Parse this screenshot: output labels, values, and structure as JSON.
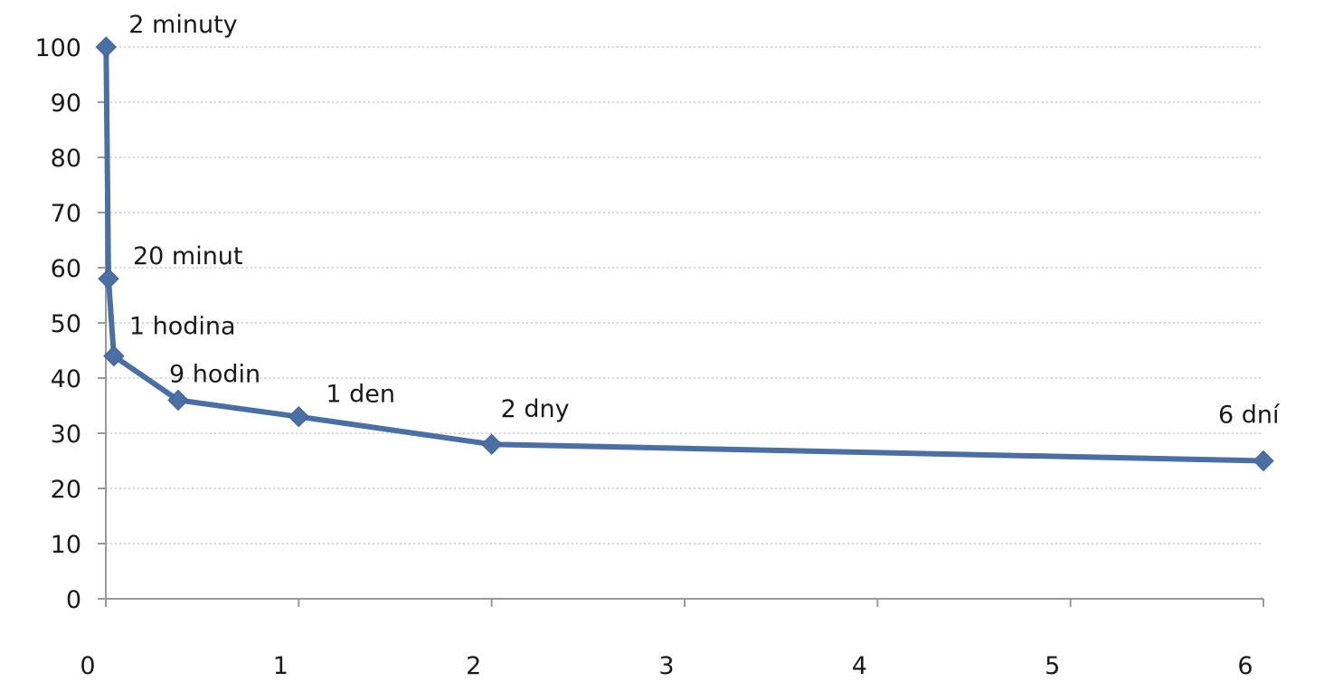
{
  "chart_data": {
    "type": "line",
    "title": "",
    "xlabel": "",
    "ylabel": "",
    "xlim": [
      0,
      6
    ],
    "ylim": [
      0,
      100
    ],
    "x_ticks": [
      0,
      1,
      2,
      3,
      4,
      5,
      6
    ],
    "y_ticks": [
      0,
      10,
      20,
      30,
      40,
      50,
      60,
      70,
      80,
      90,
      100
    ],
    "grid": true,
    "legend": "none",
    "color": "#4a6fa5",
    "series": [
      {
        "points": [
          {
            "x": 0.0014,
            "y": 100,
            "label": "2 minuty"
          },
          {
            "x": 0.0139,
            "y": 58,
            "label": "20 minut"
          },
          {
            "x": 0.0417,
            "y": 44,
            "label": "1 hodina"
          },
          {
            "x": 0.375,
            "y": 36,
            "label": "9 hodin"
          },
          {
            "x": 1,
            "y": 33,
            "label": "1 den"
          },
          {
            "x": 2,
            "y": 28,
            "label": "2 dny"
          },
          {
            "x": 6,
            "y": 25,
            "label": "6 dní"
          }
        ]
      }
    ]
  }
}
